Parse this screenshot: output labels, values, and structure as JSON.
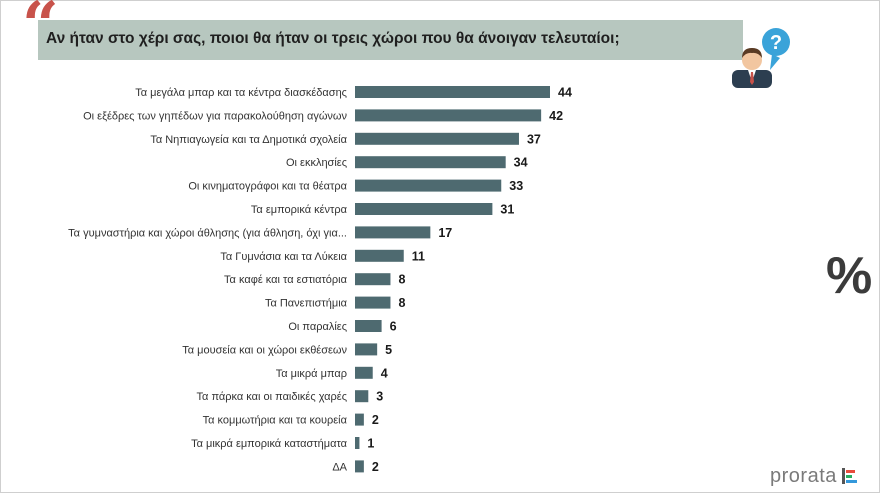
{
  "header": {
    "question": "Αν ήταν στο χέρι σας, ποιοι θα ήταν οι τρεις χώροι που θα άνοιγαν τελευταίοι;"
  },
  "icons": {
    "quote": "quote-mark-icon",
    "person": "person-question-icon",
    "percent": "percent-icon",
    "percent_glyph": "%"
  },
  "brand": {
    "name": "prorata"
  },
  "colors": {
    "bar": "#4e6a70",
    "accent": "#c8524a",
    "header_bg": "#b7c7bf"
  },
  "chart_data": {
    "type": "bar",
    "orientation": "horizontal",
    "title": "Αν ήταν στο χέρι σας, ποιοι θα ήταν οι τρεις χώροι που θα άνοιγαν τελευταίοι;",
    "unit": "%",
    "xlim": [
      0,
      44
    ],
    "categories": [
      "Τα μεγάλα μπαρ και τα κέντρα διασκέδασης",
      "Οι εξέδρες των γηπέδων για παρακολούθηση αγώνων",
      "Τα Νηπιαγωγεία και τα Δημοτικά σχολεία",
      "Οι εκκλησίες",
      "Οι κινηματογράφοι και τα θέατρα",
      "Τα εμπορικά κέντρα",
      "Τα γυμναστήρια και χώροι άθλησης (για άθληση, όχι για...",
      "Τα Γυμνάσια και τα Λύκεια",
      "Τα καφέ και τα εστιατόρια",
      "Τα Πανεπιστήμια",
      "Οι παραλίες",
      "Τα μουσεία και οι χώροι εκθέσεων",
      "Τα μικρά μπαρ",
      "Τα πάρκα και οι παιδικές χαρές",
      "Τα κομμωτήρια και τα κουρεία",
      "Τα μικρά εμπορικά καταστήματα",
      "ΔΑ"
    ],
    "values": [
      44,
      42,
      37,
      34,
      33,
      31,
      17,
      11,
      8,
      8,
      6,
      5,
      4,
      3,
      2,
      1,
      2
    ]
  }
}
